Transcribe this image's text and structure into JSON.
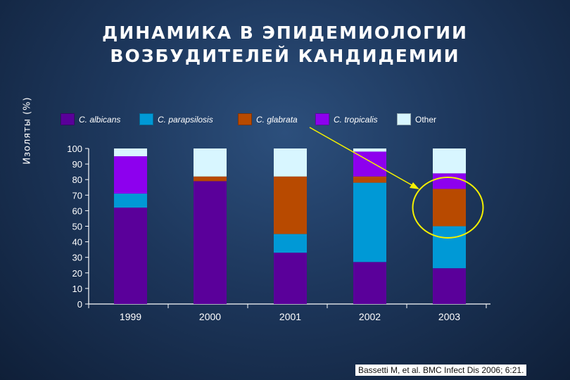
{
  "title": {
    "line1": "ДИНАМИКА В ЭПИДЕМИОЛОГИИ",
    "line2": "ВОЗБУДИТЕЛЕЙ КАНДИДЕМИИ"
  },
  "citation": "Bassetti M, et al. BMC Infect Dis 2006; 6:21.",
  "chart_data": {
    "type": "bar",
    "stacked": true,
    "title": "ДИНАМИКА В ЭПИДЕМИОЛОГИИ ВОЗБУДИТЕЛЕЙ КАНДИДЕМИИ",
    "xlabel": "",
    "ylabel": "Изоляты (%)",
    "ylim": [
      0,
      100
    ],
    "yticks": [
      0,
      10,
      20,
      30,
      40,
      50,
      60,
      70,
      80,
      90,
      100
    ],
    "categories": [
      "1999",
      "2000",
      "2001",
      "2002",
      "2003"
    ],
    "legend_position": "top",
    "series": [
      {
        "name": "C. albicans",
        "color": "#5a009a",
        "italic": true,
        "values": [
          62,
          79,
          33,
          27,
          23
        ]
      },
      {
        "name": "C. parapsilosis",
        "color": "#0099d6",
        "italic": true,
        "values": [
          9,
          0,
          12,
          51,
          27
        ]
      },
      {
        "name": "C. glabrata",
        "color": "#b84a00",
        "italic": true,
        "values": [
          0,
          3,
          37,
          4,
          24
        ]
      },
      {
        "name": "C. tropicalis",
        "color": "#8d00ee",
        "italic": true,
        "values": [
          24,
          0,
          0,
          16,
          10
        ]
      },
      {
        "name": "Other",
        "color": "#d8f6ff",
        "italic": false,
        "values": [
          5,
          18,
          18,
          2,
          16
        ]
      }
    ],
    "annotation": {
      "type": "arrow-and-ellipse",
      "target_category": "2003",
      "color": "#f4f000"
    }
  }
}
